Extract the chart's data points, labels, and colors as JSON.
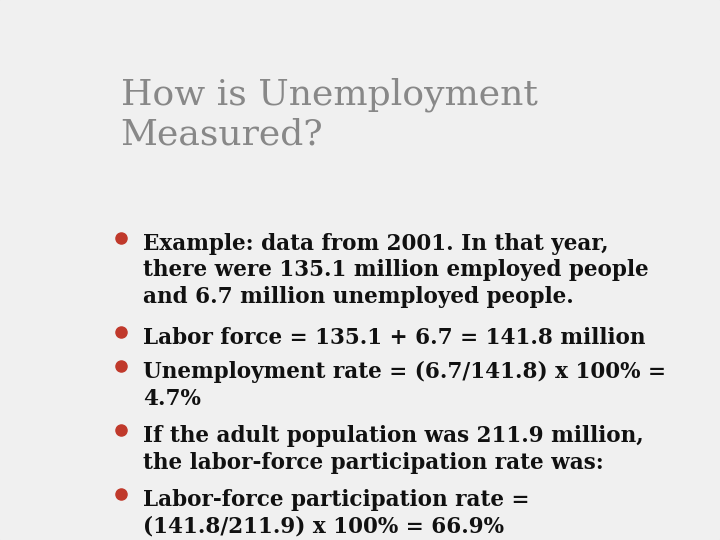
{
  "title": "How is Unemployment\nMeasured?",
  "title_color": "#888888",
  "title_fontsize": 26,
  "background_color": "#f0f0f0",
  "border_color": "#cccccc",
  "bullet_color": "#c0392b",
  "text_color": "#111111",
  "bullet_fontsize": 15.5,
  "bullets": [
    "Example: data from 2001. In that year,\nthere were 135.1 million employed people\nand 6.7 million unemployed people.",
    "Labor force = 135.1 + 6.7 = 141.8 million",
    "Unemployment rate = (6.7/141.8) x 100% =\n4.7%",
    "If the adult population was 211.9 million,\nthe labor-force participation rate was:",
    "Labor-force participation rate =\n(141.8/211.9) x 100% = 66.9%"
  ],
  "bullet_line_counts": [
    3,
    1,
    2,
    2,
    2
  ]
}
